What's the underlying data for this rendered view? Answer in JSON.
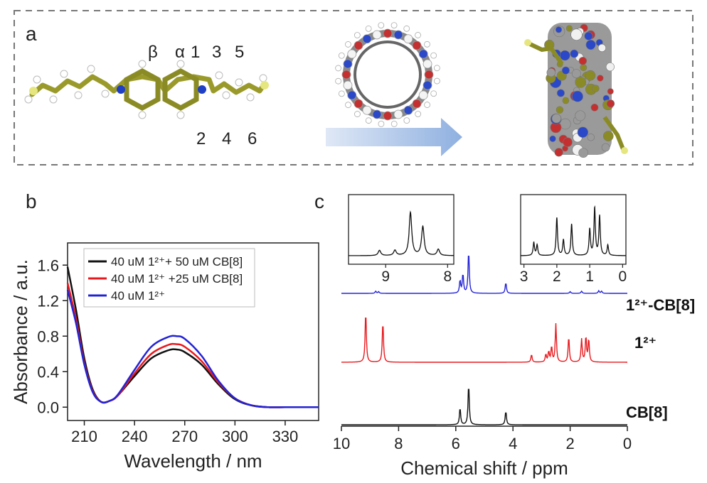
{
  "panel_a": {
    "letter": "a",
    "labels_top": [
      "β",
      "α",
      "1",
      "3",
      "5"
    ],
    "labels_bottom": [
      "2",
      "4",
      "6"
    ]
  },
  "panel_b": {
    "letter": "b"
  },
  "panel_c": {
    "letter": "c"
  },
  "chart_data": [
    {
      "type": "line",
      "xlabel": "Wavelength / nm",
      "ylabel": "Absorbance / a.u.",
      "xlim": [
        200,
        350
      ],
      "ylim": [
        -0.15,
        1.85
      ],
      "xticks": [
        210,
        240,
        270,
        300,
        330
      ],
      "yticks": [
        0.0,
        0.4,
        0.8,
        1.2,
        1.6
      ],
      "legend_position": "top-right",
      "series": [
        {
          "name": "40 uM 1²⁺+ 50 uM CB[8]",
          "color": "#111111",
          "x": [
            200,
            205,
            210,
            215,
            220,
            225,
            230,
            240,
            250,
            260,
            265,
            270,
            280,
            290,
            300,
            310,
            320,
            330,
            340,
            350
          ],
          "y": [
            1.58,
            1.1,
            0.55,
            0.2,
            0.06,
            0.07,
            0.13,
            0.35,
            0.55,
            0.64,
            0.65,
            0.62,
            0.48,
            0.26,
            0.09,
            0.02,
            0.0,
            0.0,
            0.0,
            0.0
          ]
        },
        {
          "name": "40 uM 1²⁺ +25 uM CB[8]",
          "color": "#e8191e",
          "x": [
            200,
            205,
            210,
            215,
            220,
            225,
            230,
            240,
            250,
            260,
            265,
            270,
            280,
            290,
            300,
            310,
            320,
            330,
            340,
            350
          ],
          "y": [
            1.4,
            1.0,
            0.5,
            0.18,
            0.06,
            0.07,
            0.13,
            0.38,
            0.6,
            0.7,
            0.71,
            0.68,
            0.52,
            0.28,
            0.1,
            0.02,
            0.0,
            0.0,
            0.0,
            0.0
          ]
        },
        {
          "name": "40 uM 1²⁺",
          "color": "#2323d6",
          "x": [
            200,
            205,
            210,
            215,
            220,
            225,
            230,
            240,
            250,
            260,
            265,
            270,
            280,
            290,
            300,
            310,
            320,
            330,
            340,
            350
          ],
          "y": [
            1.32,
            0.95,
            0.48,
            0.17,
            0.06,
            0.07,
            0.14,
            0.42,
            0.68,
            0.79,
            0.8,
            0.77,
            0.58,
            0.3,
            0.1,
            0.02,
            0.0,
            0.0,
            0.0,
            0.0
          ]
        }
      ]
    },
    {
      "type": "line",
      "xlabel": "Chemical shift / ppm",
      "xlim": [
        10,
        0
      ],
      "xticks": [
        10,
        8,
        6,
        4,
        2,
        0
      ],
      "series": [
        {
          "name": "1²⁺-CB[8]",
          "color": "#2323d6",
          "peaks": [
            [
              8.8,
              0.05
            ],
            [
              8.7,
              0.04
            ],
            [
              5.85,
              0.3
            ],
            [
              5.75,
              0.45
            ],
            [
              5.55,
              1.0
            ],
            [
              4.25,
              0.25
            ],
            [
              2.0,
              0.04
            ],
            [
              1.6,
              0.05
            ],
            [
              1.0,
              0.06
            ],
            [
              0.9,
              0.05
            ]
          ]
        },
        {
          "name": "1²⁺",
          "color": "#e8191e",
          "peaks": [
            [
              9.15,
              1.0
            ],
            [
              8.55,
              0.8
            ],
            [
              3.35,
              0.15
            ],
            [
              2.85,
              0.15
            ],
            [
              2.75,
              0.2
            ],
            [
              2.65,
              0.3
            ],
            [
              2.5,
              0.75
            ],
            [
              2.05,
              0.5
            ],
            [
              1.6,
              0.45
            ],
            [
              1.45,
              0.5
            ],
            [
              1.35,
              0.45
            ]
          ]
        },
        {
          "name": "CB[8]",
          "color": "#111111",
          "peaks": [
            [
              5.85,
              0.5
            ],
            [
              5.55,
              1.2
            ],
            [
              4.25,
              0.4
            ]
          ]
        }
      ],
      "insets": [
        {
          "xticks": [
            9,
            8
          ],
          "xlim": [
            9.6,
            7.9
          ],
          "peaks": [
            [
              9.1,
              0.1
            ],
            [
              8.85,
              0.1
            ],
            [
              8.6,
              0.82
            ],
            [
              8.4,
              0.55
            ],
            [
              8.15,
              0.12
            ]
          ]
        },
        {
          "xticks": [
            3,
            2,
            1,
            0
          ],
          "xlim": [
            3.1,
            -0.1
          ],
          "peaks": [
            [
              2.7,
              0.25
            ],
            [
              2.6,
              0.2
            ],
            [
              2.0,
              0.72
            ],
            [
              1.8,
              0.3
            ],
            [
              1.55,
              0.6
            ],
            [
              1.0,
              0.5
            ],
            [
              0.85,
              0.9
            ],
            [
              0.7,
              0.75
            ],
            [
              0.45,
              0.2
            ]
          ]
        }
      ]
    }
  ]
}
